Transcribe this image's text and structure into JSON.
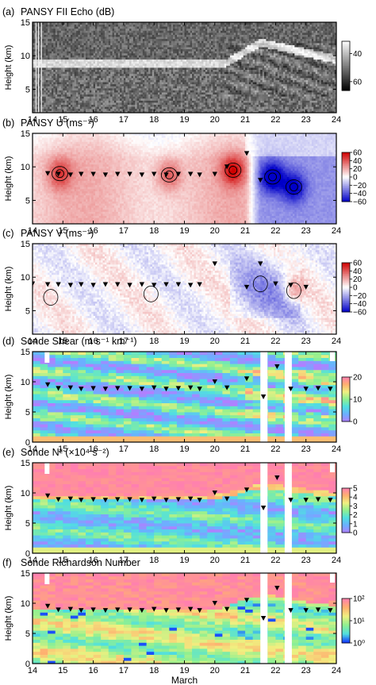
{
  "chart_data": [
    {
      "type": "heatmap",
      "panel": "(a)",
      "title": "PANSY FII Echo (dB)",
      "ylabel": "Height (km)",
      "xlim": [
        14,
        24
      ],
      "ylim": [
        1.5,
        15
      ],
      "xticks": [
        "14",
        "15",
        "16",
        "17",
        "18",
        "19",
        "20",
        "21",
        "22",
        "23",
        "24"
      ],
      "yticks": [
        "5",
        "10",
        "15"
      ],
      "colorbar": {
        "ticks": [
          "40",
          "60"
        ],
        "range": [
          35,
          70
        ],
        "colors": [
          "#000000",
          "#ffffff"
        ]
      },
      "tropopause_height_km": {
        "x": [
          14,
          20.4,
          20.8,
          21.5,
          22.5,
          24
        ],
        "y": [
          9.0,
          9.0,
          11.0,
          12.0,
          10.5,
          9.5
        ]
      },
      "markers": []
    },
    {
      "type": "heatmap",
      "panel": "(b)",
      "title": "PANSY U (ms⁻¹)",
      "ylabel": "Height (km)",
      "xlim": [
        14,
        24
      ],
      "ylim": [
        1.5,
        15
      ],
      "xticks": [
        "14",
        "15",
        "16",
        "17",
        "18",
        "19",
        "20",
        "21",
        "22",
        "23",
        "24"
      ],
      "yticks": [
        "5",
        "10",
        "15"
      ],
      "colorbar": {
        "ticks": [
          "60",
          "40",
          "20",
          "0",
          "−20",
          "−40",
          "−60"
        ],
        "range": [
          -60,
          60
        ],
        "colors": [
          "#0000c8",
          "#ffffff",
          "#d00000"
        ]
      },
      "jets": [
        {
          "x": 14.9,
          "y": 9.0,
          "u": 35
        },
        {
          "x": 18.5,
          "y": 8.8,
          "u": 32
        },
        {
          "x": 20.6,
          "y": 9.5,
          "u": 45
        },
        {
          "x": 21.9,
          "y": 8.5,
          "u": -55
        },
        {
          "x": 22.6,
          "y": 7.0,
          "u": -45
        }
      ],
      "markers": {
        "x": [
          14.5,
          14.85,
          15.25,
          15.6,
          16.0,
          16.4,
          16.8,
          17.2,
          17.6,
          18.0,
          18.4,
          18.8,
          19.2,
          19.5,
          20.0,
          20.4,
          21.05,
          21.5
        ],
        "y": [
          9.0,
          8.9,
          8.8,
          8.9,
          8.9,
          8.8,
          8.9,
          8.9,
          8.8,
          8.9,
          8.8,
          8.9,
          8.9,
          8.8,
          8.9,
          10.0,
          12.0,
          8.0
        ]
      }
    },
    {
      "type": "heatmap",
      "panel": "(c)",
      "title": "PANSY V (ms⁻¹)",
      "ylabel": "Height (km)",
      "xlim": [
        14,
        24
      ],
      "ylim": [
        1.5,
        15
      ],
      "xticks": [
        "14",
        "15",
        "16",
        "17",
        "18",
        "19",
        "20",
        "21",
        "22",
        "23",
        "24"
      ],
      "yticks": [
        "5",
        "10",
        "15"
      ],
      "colorbar": {
        "ticks": [
          "60",
          "40",
          "20",
          "0",
          "−20",
          "−40",
          "−60"
        ],
        "range": [
          -60,
          60
        ],
        "colors": [
          "#0000c8",
          "#ffffff",
          "#d00000"
        ]
      },
      "markers": {
        "x": [
          14.0,
          14.5,
          14.85,
          15.25,
          15.6,
          16.0,
          16.4,
          16.8,
          17.2,
          17.6,
          18.0,
          18.4,
          18.8,
          19.2,
          19.5,
          20.0,
          21.05,
          21.5,
          22.0,
          22.5,
          23.0
        ],
        "y": [
          9.0,
          8.9,
          8.9,
          8.8,
          8.9,
          8.8,
          8.9,
          8.9,
          8.8,
          8.9,
          8.8,
          8.9,
          8.9,
          8.8,
          8.9,
          12.0,
          8.5,
          12.0,
          9.0,
          8.8,
          8.5
        ]
      }
    },
    {
      "type": "heatmap",
      "panel": "(d)",
      "title": "Sonde Shear (m s⁻¹ km⁻¹)",
      "ylabel": "Height (km)",
      "xlim": [
        14,
        24
      ],
      "ylim": [
        0,
        15
      ],
      "xticks": [
        "14",
        "15",
        "16",
        "17",
        "18",
        "19",
        "20",
        "21",
        "22",
        "23",
        "24"
      ],
      "yticks": [
        "0",
        "5",
        "10",
        "15"
      ],
      "colorbar": {
        "ticks": [
          "20",
          "10",
          "0"
        ],
        "range": [
          0,
          20
        ],
        "colors": [
          "#b080ff",
          "#6ab0ff",
          "#50e0e0",
          "#90f090",
          "#f0f080",
          "#ffb070",
          "#ff7fb0"
        ]
      },
      "missing_x": [
        14.4,
        21.5,
        22.3
      ],
      "markers": {
        "x": [
          14.5,
          14.85,
          15.25,
          15.6,
          16.0,
          16.4,
          16.8,
          17.2,
          17.6,
          18.0,
          18.4,
          18.8,
          19.2,
          19.5,
          20.0,
          20.4,
          21.05,
          21.6,
          22.05,
          22.5,
          23.0,
          23.4,
          23.8
        ],
        "y": [
          9.5,
          8.9,
          9.0,
          8.8,
          8.9,
          8.8,
          8.9,
          8.9,
          8.8,
          9.0,
          8.8,
          8.9,
          9.0,
          8.8,
          10.0,
          9.0,
          10.5,
          7.5,
          12.5,
          8.8,
          8.8,
          8.9,
          8.8
        ]
      }
    },
    {
      "type": "heatmap",
      "panel": "(e)",
      "title": "Sonde N² (×10⁴ s⁻²)",
      "ylabel": "Height (km)",
      "xlim": [
        14,
        24
      ],
      "ylim": [
        0,
        15
      ],
      "xticks": [
        "14",
        "15",
        "16",
        "17",
        "18",
        "19",
        "20",
        "21",
        "22",
        "23",
        "24"
      ],
      "yticks": [
        "0",
        "5",
        "10",
        "15"
      ],
      "colorbar": {
        "ticks": [
          "5",
          "4",
          "3",
          "2",
          "1",
          "0"
        ],
        "range": [
          0,
          5
        ],
        "colors": [
          "#b080ff",
          "#6ab0ff",
          "#50e0e0",
          "#90f090",
          "#f0f080",
          "#ffb070",
          "#ff7fb0"
        ]
      },
      "missing_x": [
        14.4,
        21.5,
        22.3
      ],
      "markers": {
        "x": [
          14.5,
          14.85,
          15.25,
          15.6,
          16.0,
          16.4,
          16.8,
          17.2,
          17.6,
          18.0,
          18.4,
          18.8,
          19.2,
          19.5,
          20.0,
          20.4,
          21.05,
          21.6,
          22.05,
          22.5,
          23.0,
          23.4,
          23.8
        ],
        "y": [
          9.5,
          8.9,
          9.0,
          8.8,
          8.9,
          8.8,
          8.9,
          8.9,
          8.8,
          9.0,
          8.8,
          8.9,
          9.0,
          8.8,
          10.0,
          9.0,
          10.5,
          7.5,
          12.5,
          8.8,
          8.8,
          8.9,
          8.8
        ]
      }
    },
    {
      "type": "heatmap",
      "panel": "(f)",
      "title": "Sonde Richardson Number",
      "ylabel": "Height (km)",
      "xlabel": "March",
      "xlim": [
        14,
        24
      ],
      "ylim": [
        0,
        15
      ],
      "xticks": [
        "14",
        "15",
        "16",
        "17",
        "18",
        "19",
        "20",
        "21",
        "22",
        "23",
        "24"
      ],
      "yticks": [
        "0",
        "5",
        "10",
        "15"
      ],
      "colorbar": {
        "ticks": [
          "10²",
          "10¹",
          "10⁰"
        ],
        "range": [
          -0.5,
          2.3
        ],
        "colors": [
          "#1030ff",
          "#50e0e0",
          "#90f090",
          "#f0f080",
          "#ffb070",
          "#ff7fb0"
        ]
      },
      "missing_x": [
        14.4,
        21.5,
        22.3
      ],
      "markers": {
        "x": [
          14.5,
          14.85,
          15.25,
          15.6,
          16.0,
          16.4,
          16.8,
          17.2,
          17.6,
          18.0,
          18.4,
          18.8,
          19.2,
          19.5,
          20.0,
          20.4,
          21.05,
          21.6,
          22.05,
          22.5,
          23.0,
          23.4,
          23.8
        ],
        "y": [
          9.5,
          8.9,
          9.0,
          8.8,
          8.9,
          8.8,
          8.9,
          8.9,
          8.8,
          9.0,
          8.8,
          8.9,
          9.0,
          8.8,
          10.0,
          9.0,
          10.5,
          7.5,
          12.5,
          8.8,
          8.8,
          8.9,
          8.8
        ]
      }
    }
  ]
}
